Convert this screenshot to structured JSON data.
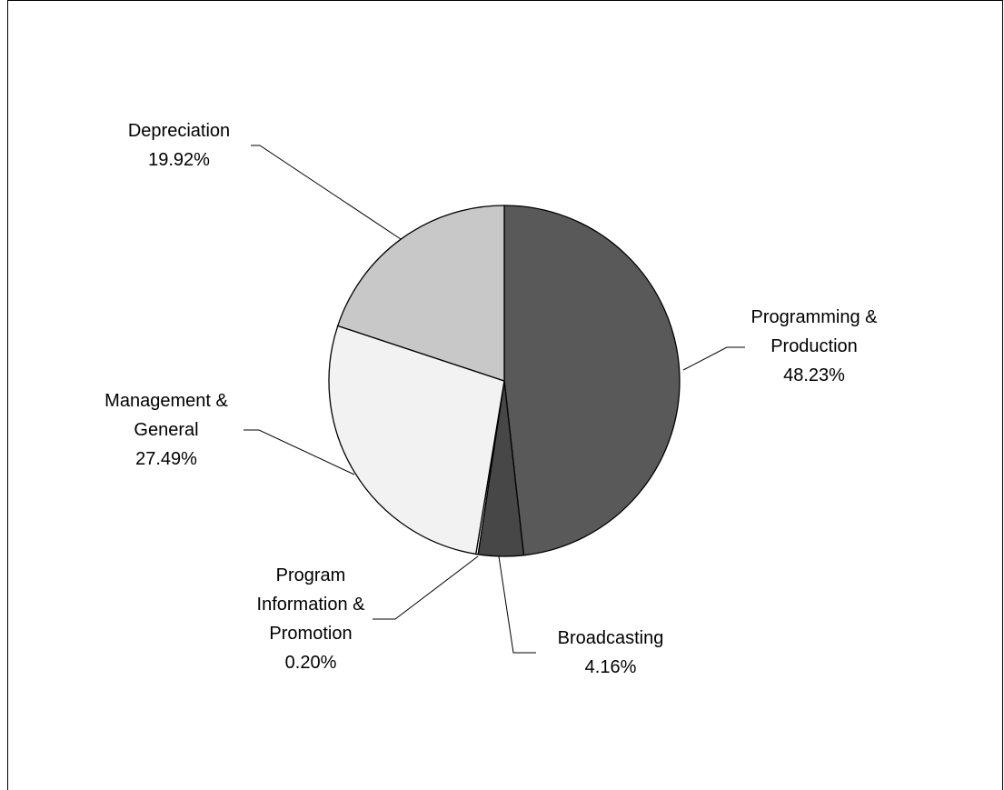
{
  "chart_data": {
    "type": "pie",
    "categories": [
      "Programming & Production",
      "Broadcasting",
      "Program Information & Promotion",
      "Management & General",
      "Depreciation"
    ],
    "values": [
      48.23,
      4.16,
      0.2,
      27.49,
      19.92
    ],
    "value_labels": [
      "48.23%",
      "4.16%",
      "0.20%",
      "27.49%",
      "19.92%"
    ],
    "colors": [
      "#595959",
      "#474747",
      "#ffffff",
      "#f2f2f2",
      "#c8c8c8"
    ]
  }
}
